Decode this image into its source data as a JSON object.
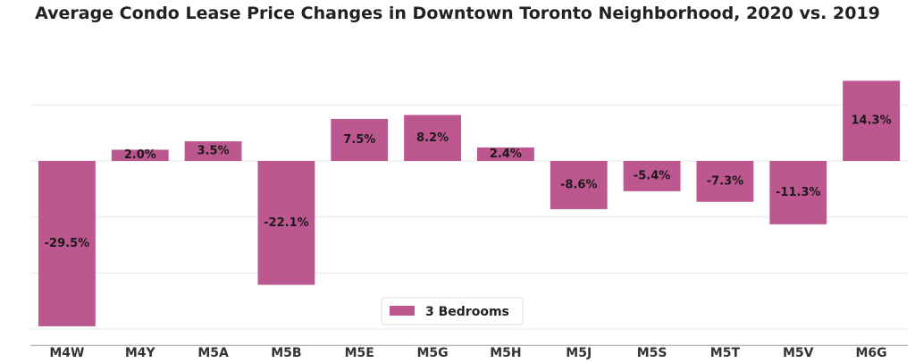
{
  "chart_data": {
    "type": "bar",
    "title": "Average Condo Lease Price Changes in Downtown Toronto Neighborhood, 2020 vs. 2019",
    "xlabel": "",
    "ylabel": "",
    "categories": [
      "M4W",
      "M4Y",
      "M5A",
      "M5B",
      "M5E",
      "M5G",
      "M5H",
      "M5J",
      "M5S",
      "M5T",
      "M5V",
      "M6G"
    ],
    "series": [
      {
        "name": "3 Bedrooms",
        "values": [
          -29.5,
          2.0,
          3.5,
          -22.1,
          7.5,
          8.2,
          2.4,
          -8.6,
          -5.4,
          -7.3,
          -11.3,
          14.3
        ],
        "labels": [
          "-29.5%",
          "2.0%",
          "3.5%",
          "-22.1%",
          "7.5%",
          "8.2%",
          "2.4%",
          "-8.6%",
          "-5.4%",
          "-7.3%",
          "-11.3%",
          "14.3%"
        ]
      }
    ],
    "ylim": [
      -31,
      20
    ],
    "grid": true,
    "legend_position": "bottom-center",
    "colors": {
      "bar": "#bd578f",
      "grid": "#e6e6e6",
      "axis": "#bbbbbb"
    }
  }
}
